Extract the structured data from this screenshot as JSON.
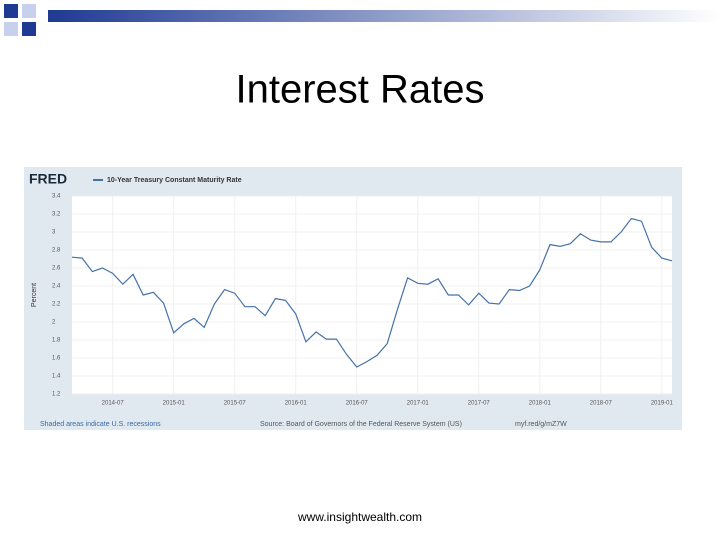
{
  "slide": {
    "title": "Interest Rates",
    "footer": "www.insightwealth.com"
  },
  "chart_data": {
    "type": "line",
    "brand": "FRED",
    "title": "10-Year Treasury Constant Maturity Rate",
    "y_label": "Percent",
    "note": "Shaded areas indicate U.S. recessions",
    "source": "Source: Board of Governors of the Federal Reserve System (US)",
    "link": "myf.red/g/mZ7W",
    "x": [
      "2014-03",
      "2014-04",
      "2014-05",
      "2014-06",
      "2014-07",
      "2014-08",
      "2014-09",
      "2014-10",
      "2014-11",
      "2014-12",
      "2015-01",
      "2015-02",
      "2015-03",
      "2015-04",
      "2015-05",
      "2015-06",
      "2015-07",
      "2015-08",
      "2015-09",
      "2015-10",
      "2015-11",
      "2015-12",
      "2016-01",
      "2016-02",
      "2016-03",
      "2016-04",
      "2016-05",
      "2016-06",
      "2016-07",
      "2016-08",
      "2016-09",
      "2016-10",
      "2016-11",
      "2016-12",
      "2017-01",
      "2017-02",
      "2017-03",
      "2017-04",
      "2017-05",
      "2017-06",
      "2017-07",
      "2017-08",
      "2017-09",
      "2017-10",
      "2017-11",
      "2017-12",
      "2018-01",
      "2018-02",
      "2018-03",
      "2018-04",
      "2018-05",
      "2018-06",
      "2018-07",
      "2018-08",
      "2018-09",
      "2018-10",
      "2018-11",
      "2018-12",
      "2019-01",
      "2019-02"
    ],
    "series": [
      {
        "name": "10-Year Treasury Constant Maturity Rate",
        "color": "#4572a7",
        "values": [
          2.72,
          2.71,
          2.56,
          2.6,
          2.54,
          2.42,
          2.53,
          2.3,
          2.33,
          2.21,
          1.88,
          1.98,
          2.04,
          1.94,
          2.2,
          2.36,
          2.32,
          2.17,
          2.17,
          2.07,
          2.26,
          2.24,
          2.09,
          1.78,
          1.89,
          1.81,
          1.81,
          1.64,
          1.5,
          1.56,
          1.63,
          1.76,
          2.14,
          2.49,
          2.43,
          2.42,
          2.48,
          2.3,
          2.3,
          2.19,
          2.32,
          2.21,
          2.2,
          2.36,
          2.35,
          2.4,
          2.58,
          2.86,
          2.84,
          2.87,
          2.98,
          2.91,
          2.89,
          2.89,
          3.0,
          3.15,
          3.12,
          2.83,
          2.71,
          2.68
        ]
      }
    ],
    "xlim": [
      "2014-03",
      "2019-02"
    ],
    "xticks": [
      "2014-07",
      "2015-01",
      "2015-07",
      "2016-01",
      "2016-07",
      "2017-01",
      "2017-07",
      "2018-01",
      "2018-07",
      "2019-01"
    ],
    "ylim": [
      1.2,
      3.4
    ],
    "yticks": [
      1.2,
      1.4,
      1.6,
      1.8,
      2.0,
      2.2,
      2.4,
      2.6,
      2.8,
      3.0,
      3.2,
      3.4
    ],
    "grid": true
  }
}
